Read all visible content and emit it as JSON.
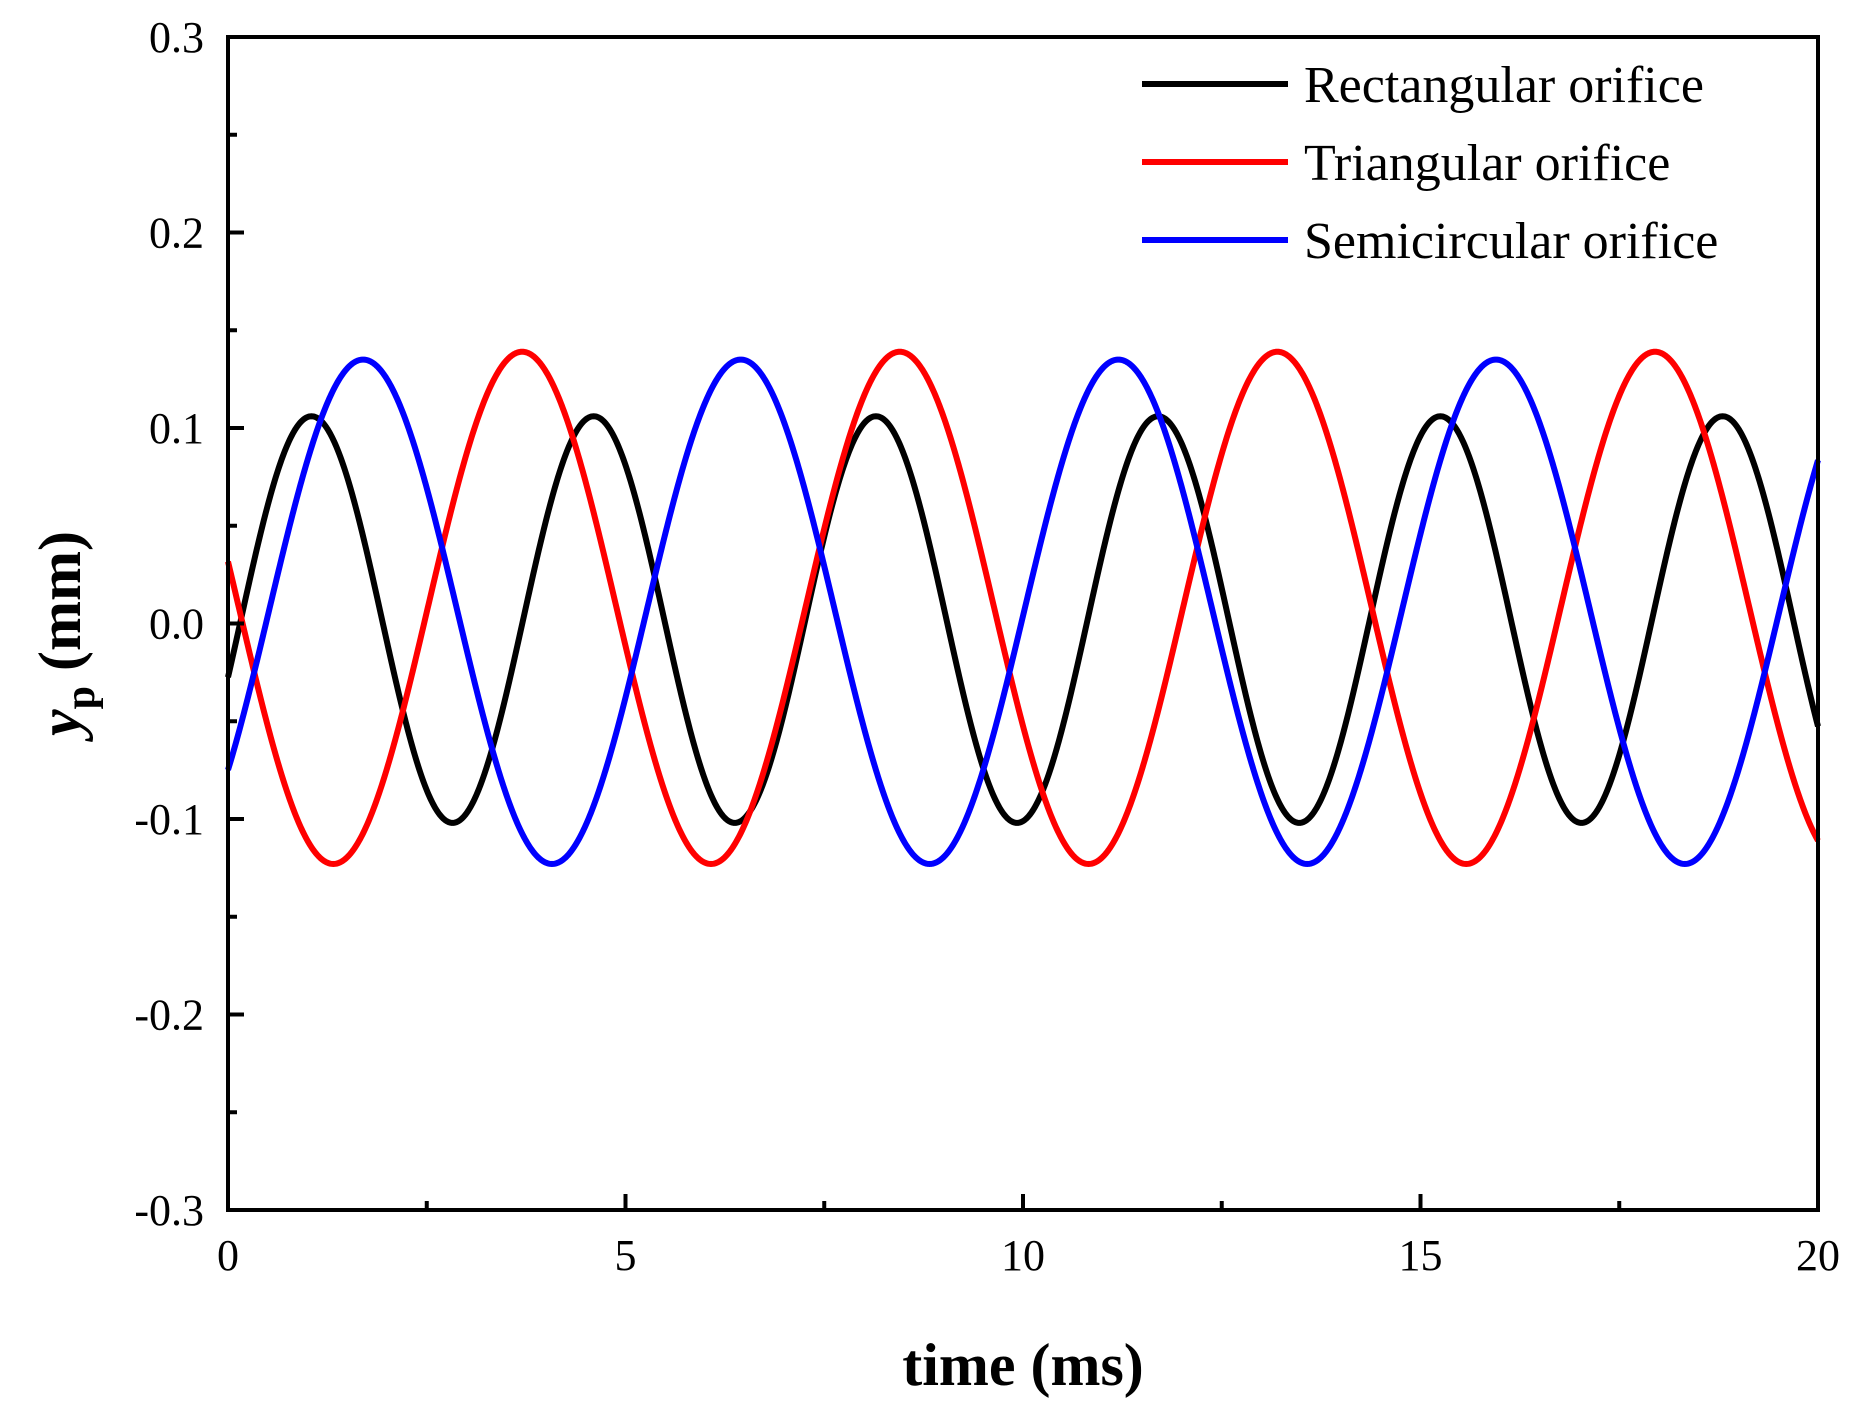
{
  "chart_data": {
    "type": "line",
    "title": "",
    "xlabel": "time (ms)",
    "ylabel_main": "y",
    "ylabel_sub": "p",
    "ylabel_unit": " (mm)",
    "xlim": [
      0,
      20
    ],
    "ylim": [
      -0.3,
      0.3
    ],
    "x_ticks": [
      "0",
      "5",
      "10",
      "15",
      "20"
    ],
    "x_tick_values": [
      0,
      5,
      10,
      15,
      20
    ],
    "x_minor_step": 2.5,
    "y_ticks": [
      "-0.3",
      "-0.2",
      "-0.1",
      "0.0",
      "0.1",
      "0.2",
      "0.3"
    ],
    "y_tick_values": [
      -0.3,
      -0.2,
      -0.1,
      0.0,
      0.1,
      0.2,
      0.3
    ],
    "y_minor_step": 0.05,
    "grid": false,
    "legend_position": "top-right",
    "series": [
      {
        "name": "Rectangular orifice",
        "color": "#000000",
        "model": "sine",
        "offset": 0.002,
        "amplitude": 0.104,
        "period_ms": 3.55,
        "peak_time_ms": 1.05
      },
      {
        "name": "Triangular orifice",
        "color": "#ff0000",
        "model": "sine",
        "offset": 0.008,
        "amplitude": 0.131,
        "period_ms": 4.75,
        "peak_time_ms": 3.7
      },
      {
        "name": "Semicircular orifice",
        "color": "#0000ff",
        "model": "sine",
        "offset": 0.006,
        "amplitude": 0.129,
        "period_ms": 4.75,
        "peak_time_ms": 1.7
      }
    ]
  }
}
